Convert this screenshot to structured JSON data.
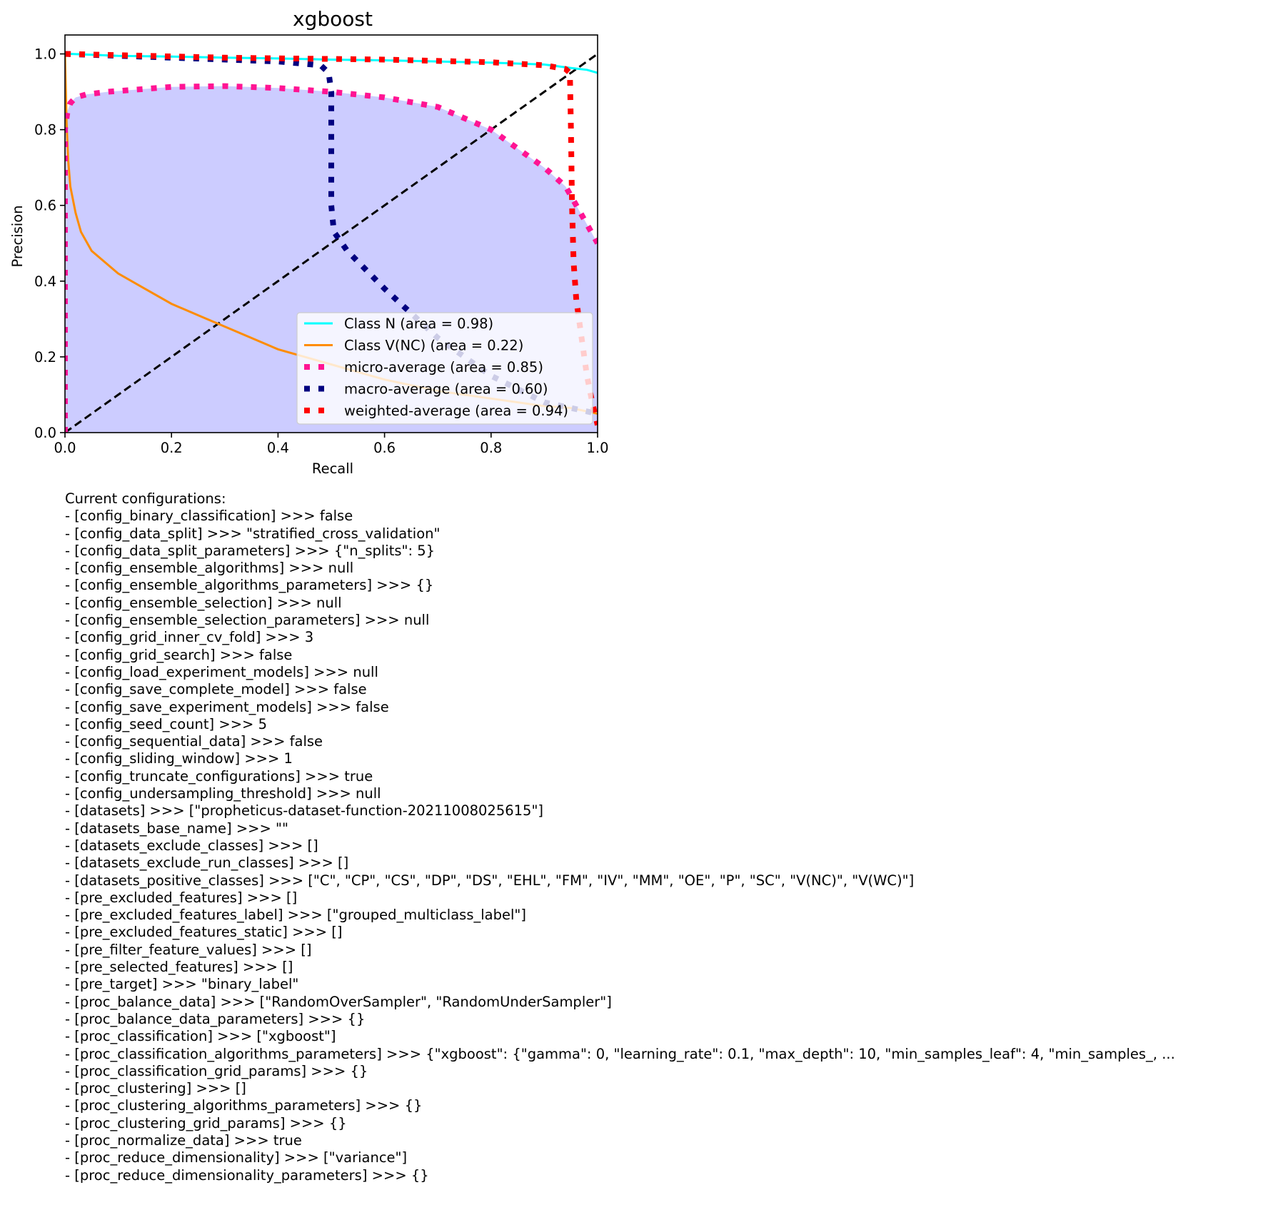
{
  "chart_data": {
    "type": "line",
    "title": "xgboost",
    "xlabel": "Recall",
    "ylabel": "Precision",
    "xlim": [
      0.0,
      1.0
    ],
    "ylim": [
      0.0,
      1.05
    ],
    "xticks": [
      "0.0",
      "0.2",
      "0.4",
      "0.6",
      "0.8",
      "1.0"
    ],
    "yticks": [
      "0.0",
      "0.2",
      "0.4",
      "0.6",
      "0.8",
      "1.0"
    ],
    "grid": false,
    "legend_position": "lower-right",
    "fill_under": "micro-average",
    "fill_color": "#ccccff",
    "series": [
      {
        "name": "Class N (area = 0.98)",
        "color": "#00ffff",
        "style": "solid",
        "points": [
          [
            0.0,
            1.0
          ],
          [
            0.01,
            1.0
          ],
          [
            0.1,
            0.995
          ],
          [
            0.2,
            0.993
          ],
          [
            0.3,
            0.99
          ],
          [
            0.4,
            0.988
          ],
          [
            0.5,
            0.985
          ],
          [
            0.6,
            0.983
          ],
          [
            0.7,
            0.98
          ],
          [
            0.8,
            0.977
          ],
          [
            0.9,
            0.972
          ],
          [
            0.95,
            0.963
          ],
          [
            0.98,
            0.958
          ],
          [
            1.0,
            0.95
          ]
        ]
      },
      {
        "name": "Class V(NC) (area = 0.22)",
        "color": "#ff8c00",
        "style": "solid",
        "points": [
          [
            0.0,
            1.0
          ],
          [
            0.003,
            0.82
          ],
          [
            0.006,
            0.72
          ],
          [
            0.01,
            0.65
          ],
          [
            0.02,
            0.58
          ],
          [
            0.03,
            0.53
          ],
          [
            0.05,
            0.48
          ],
          [
            0.1,
            0.42
          ],
          [
            0.15,
            0.38
          ],
          [
            0.2,
            0.34
          ],
          [
            0.25,
            0.31
          ],
          [
            0.3,
            0.28
          ],
          [
            0.35,
            0.25
          ],
          [
            0.4,
            0.22
          ],
          [
            0.5,
            0.18
          ],
          [
            0.6,
            0.14
          ],
          [
            0.7,
            0.11
          ],
          [
            0.8,
            0.09
          ],
          [
            0.9,
            0.07
          ],
          [
            0.95,
            0.065
          ],
          [
            1.0,
            0.05
          ]
        ]
      },
      {
        "name": "micro-average (area = 0.85)",
        "color": "#ff1493",
        "style": "dotted",
        "points": [
          [
            0.0,
            0.0
          ],
          [
            0.0,
            0.8
          ],
          [
            0.005,
            0.85
          ],
          [
            0.01,
            0.87
          ],
          [
            0.02,
            0.885
          ],
          [
            0.04,
            0.893
          ],
          [
            0.08,
            0.9
          ],
          [
            0.2,
            0.913
          ],
          [
            0.3,
            0.915
          ],
          [
            0.4,
            0.91
          ],
          [
            0.5,
            0.9
          ],
          [
            0.6,
            0.885
          ],
          [
            0.7,
            0.86
          ],
          [
            0.8,
            0.8
          ],
          [
            0.9,
            0.7
          ],
          [
            0.94,
            0.65
          ],
          [
            0.96,
            0.6
          ],
          [
            0.98,
            0.55
          ],
          [
            1.0,
            0.5
          ]
        ]
      },
      {
        "name": "macro-average (area = 0.60)",
        "color": "#000080",
        "style": "dotted",
        "points": [
          [
            0.0,
            1.0
          ],
          [
            0.2,
            0.99
          ],
          [
            0.4,
            0.98
          ],
          [
            0.48,
            0.97
          ],
          [
            0.495,
            0.95
          ],
          [
            0.5,
            0.9
          ],
          [
            0.5,
            0.6
          ],
          [
            0.505,
            0.53
          ],
          [
            0.53,
            0.48
          ],
          [
            0.6,
            0.38
          ],
          [
            0.7,
            0.25
          ],
          [
            0.8,
            0.15
          ],
          [
            0.9,
            0.08
          ],
          [
            1.0,
            0.05
          ]
        ]
      },
      {
        "name": "weighted-average (area = 0.94)",
        "color": "#ff0000",
        "style": "dotted",
        "points": [
          [
            0.0,
            1.0
          ],
          [
            0.3,
            0.99
          ],
          [
            0.6,
            0.985
          ],
          [
            0.8,
            0.978
          ],
          [
            0.9,
            0.97
          ],
          [
            0.94,
            0.96
          ],
          [
            0.948,
            0.95
          ],
          [
            0.95,
            0.8
          ],
          [
            0.952,
            0.6
          ],
          [
            0.955,
            0.45
          ],
          [
            0.96,
            0.35
          ],
          [
            0.97,
            0.25
          ],
          [
            0.98,
            0.15
          ],
          [
            0.99,
            0.08
          ],
          [
            1.0,
            0.02
          ]
        ]
      },
      {
        "name": "",
        "color": "#000000",
        "style": "dashed",
        "points": [
          [
            0.0,
            0.0
          ],
          [
            1.0,
            1.0
          ]
        ]
      }
    ]
  },
  "config": {
    "header": "Current configurations:",
    "lines": [
      "- [config_binary_classification] >>> false",
      "- [config_data_split] >>> \"stratified_cross_validation\"",
      "- [config_data_split_parameters] >>> {\"n_splits\": 5}",
      "- [config_ensemble_algorithms] >>> null",
      "- [config_ensemble_algorithms_parameters] >>> {}",
      "- [config_ensemble_selection] >>> null",
      "- [config_ensemble_selection_parameters] >>> null",
      "- [config_grid_inner_cv_fold] >>> 3",
      "- [config_grid_search] >>> false",
      "- [config_load_experiment_models] >>> null",
      "- [config_save_complete_model] >>> false",
      "- [config_save_experiment_models] >>> false",
      "- [config_seed_count] >>> 5",
      "- [config_sequential_data] >>> false",
      "- [config_sliding_window] >>> 1",
      "- [config_truncate_configurations] >>> true",
      "- [config_undersampling_threshold] >>> null",
      "- [datasets] >>> [\"propheticus-dataset-function-20211008025615\"]",
      "- [datasets_base_name] >>> \"\"",
      "- [datasets_exclude_classes] >>> []",
      "- [datasets_exclude_run_classes] >>> []",
      "- [datasets_positive_classes] >>> [\"C\", \"CP\", \"CS\", \"DP\", \"DS\", \"EHL\", \"FM\", \"IV\", \"MM\", \"OE\", \"P\", \"SC\", \"V(NC)\", \"V(WC)\"]",
      "- [pre_excluded_features] >>> []",
      "- [pre_excluded_features_label] >>> [\"grouped_multiclass_label\"]",
      "- [pre_excluded_features_static] >>> []",
      "- [pre_filter_feature_values] >>> []",
      "- [pre_selected_features] >>> []",
      "- [pre_target] >>> \"binary_label\"",
      "- [proc_balance_data] >>> [\"RandomOverSampler\", \"RandomUnderSampler\"]",
      "- [proc_balance_data_parameters] >>> {}",
      "- [proc_classification] >>> [\"xgboost\"]",
      "- [proc_classification_algorithms_parameters] >>> {\"xgboost\": {\"gamma\": 0, \"learning_rate\": 0.1, \"max_depth\": 10, \"min_samples_leaf\": 4, \"min_samples_, ...",
      "- [proc_classification_grid_params] >>> {}",
      "- [proc_clustering] >>> []",
      "- [proc_clustering_algorithms_parameters] >>> {}",
      "- [proc_clustering_grid_params] >>> {}",
      "- [proc_normalize_data] >>> true",
      "- [proc_reduce_dimensionality] >>> [\"variance\"]",
      "- [proc_reduce_dimensionality_parameters] >>> {}"
    ]
  }
}
